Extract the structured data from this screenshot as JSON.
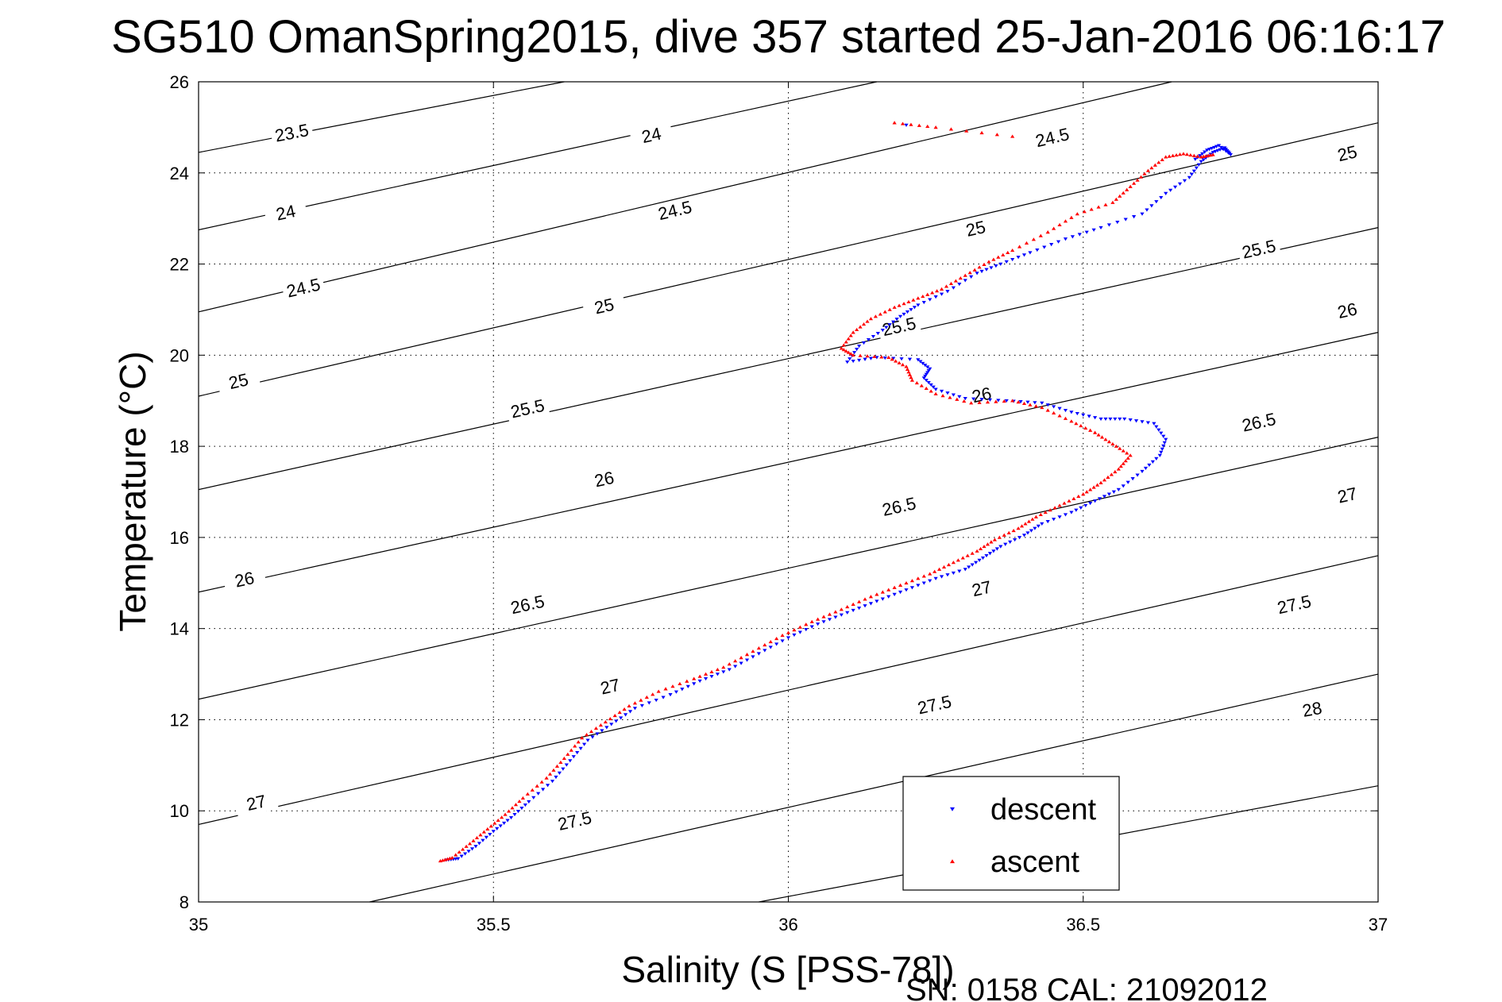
{
  "chart_data": {
    "type": "scatter",
    "title": "SG510 OmanSpring2015, dive 357 started 25-Jan-2016 06:16:17",
    "xlabel": "Salinity (S [PSS-78])",
    "ylabel": "Temperature (°C)",
    "xlim": [
      35,
      37
    ],
    "ylim": [
      8,
      26
    ],
    "x_ticks": [
      "35",
      "35.5",
      "36",
      "36.5",
      "37"
    ],
    "y_ticks": [
      "8",
      "10",
      "12",
      "14",
      "16",
      "18",
      "20",
      "22",
      "24",
      "26"
    ],
    "grid": true,
    "grid_style": "dotted",
    "legend": {
      "placement": "bottom-right",
      "entries": [
        "descent",
        "ascent"
      ]
    },
    "footer": "SN: 0158  CAL: 21092012",
    "isopycnals": {
      "color": "#000000",
      "levels": [
        {
          "label": "23.5",
          "x": [
            35.0,
            35.62
          ],
          "y": [
            24.45,
            26.0
          ]
        },
        {
          "label": "24",
          "x": [
            35.0,
            36.15
          ],
          "y": [
            22.75,
            26.0
          ]
        },
        {
          "label": "24.5",
          "x": [
            35.0,
            36.65
          ],
          "y": [
            20.95,
            26.0
          ]
        },
        {
          "label": "25",
          "x": [
            35.0,
            37.0
          ],
          "y": [
            19.1,
            25.1
          ]
        },
        {
          "label": "25.5",
          "x": [
            35.0,
            37.0
          ],
          "y": [
            17.05,
            22.8
          ]
        },
        {
          "label": "26",
          "x": [
            35.0,
            37.0
          ],
          "y": [
            14.8,
            20.5
          ]
        },
        {
          "label": "26.5",
          "x": [
            35.0,
            37.0
          ],
          "y": [
            12.45,
            18.2
          ]
        },
        {
          "label": "27",
          "x": [
            35.0,
            37.0
          ],
          "y": [
            9.7,
            15.6
          ]
        },
        {
          "label": "27.5",
          "x": [
            35.29,
            37.0
          ],
          "y": [
            8.0,
            13.0
          ]
        },
        {
          "label": "28",
          "x": [
            35.95,
            37.0
          ],
          "y": [
            8.0,
            10.55
          ]
        }
      ],
      "label_positions": [
        {
          "label": "23.5",
          "x": 35.16,
          "y": 24.75
        },
        {
          "label": "24",
          "x": 35.77,
          "y": 24.7
        },
        {
          "label": "24.5",
          "x": 36.45,
          "y": 24.65
        },
        {
          "label": "25",
          "x": 36.95,
          "y": 24.3
        },
        {
          "label": "24",
          "x": 35.15,
          "y": 23.0
        },
        {
          "label": "24.5",
          "x": 35.81,
          "y": 23.05
        },
        {
          "label": "25",
          "x": 36.32,
          "y": 22.65
        },
        {
          "label": "25.5",
          "x": 36.8,
          "y": 22.2
        },
        {
          "label": "24.5",
          "x": 35.18,
          "y": 21.35
        },
        {
          "label": "25",
          "x": 35.69,
          "y": 20.95
        },
        {
          "label": "25.5",
          "x": 36.19,
          "y": 20.5
        },
        {
          "label": "26",
          "x": 36.95,
          "y": 20.85
        },
        {
          "label": "25",
          "x": 35.07,
          "y": 19.3
        },
        {
          "label": "25.5",
          "x": 35.56,
          "y": 18.7
        },
        {
          "label": "26",
          "x": 36.33,
          "y": 19.0
        },
        {
          "label": "26.5",
          "x": 36.8,
          "y": 18.4
        },
        {
          "label": "26",
          "x": 35.69,
          "y": 17.15
        },
        {
          "label": "26.5",
          "x": 36.19,
          "y": 16.55
        },
        {
          "label": "27",
          "x": 36.95,
          "y": 16.8
        },
        {
          "label": "26",
          "x": 35.08,
          "y": 14.95
        },
        {
          "label": "26.5",
          "x": 35.56,
          "y": 14.4
        },
        {
          "label": "27",
          "x": 36.33,
          "y": 14.75
        },
        {
          "label": "27.5",
          "x": 36.86,
          "y": 14.4
        },
        {
          "label": "27",
          "x": 35.7,
          "y": 12.6
        },
        {
          "label": "27.5",
          "x": 36.25,
          "y": 12.2
        },
        {
          "label": "28",
          "x": 36.89,
          "y": 12.1
        },
        {
          "label": "27",
          "x": 35.1,
          "y": 10.05
        },
        {
          "label": "27.5",
          "x": 35.64,
          "y": 9.65
        }
      ]
    },
    "series": [
      {
        "name": "descent",
        "color": "#0000ff",
        "marker": "triangle-down",
        "points": [
          [
            35.42,
            8.92
          ],
          [
            35.44,
            8.95
          ],
          [
            35.47,
            9.22
          ],
          [
            35.5,
            9.55
          ],
          [
            35.53,
            9.85
          ],
          [
            35.56,
            10.2
          ],
          [
            35.6,
            10.65
          ],
          [
            35.63,
            11.1
          ],
          [
            35.66,
            11.55
          ],
          [
            35.7,
            11.9
          ],
          [
            35.74,
            12.25
          ],
          [
            35.8,
            12.55
          ],
          [
            35.85,
            12.85
          ],
          [
            35.9,
            13.1
          ],
          [
            35.95,
            13.45
          ],
          [
            36.0,
            13.8
          ],
          [
            36.05,
            14.1
          ],
          [
            36.1,
            14.35
          ],
          [
            36.15,
            14.6
          ],
          [
            36.2,
            14.85
          ],
          [
            36.25,
            15.1
          ],
          [
            36.3,
            15.3
          ],
          [
            36.33,
            15.55
          ],
          [
            36.36,
            15.8
          ],
          [
            36.4,
            16.05
          ],
          [
            36.43,
            16.3
          ],
          [
            36.48,
            16.55
          ],
          [
            36.52,
            16.8
          ],
          [
            36.56,
            17.05
          ],
          [
            36.6,
            17.45
          ],
          [
            36.63,
            17.8
          ],
          [
            36.64,
            18.15
          ],
          [
            36.62,
            18.5
          ],
          [
            36.57,
            18.6
          ],
          [
            36.53,
            18.6
          ],
          [
            36.48,
            18.75
          ],
          [
            36.43,
            18.95
          ],
          [
            36.37,
            19.0
          ],
          [
            36.3,
            19.05
          ],
          [
            36.25,
            19.25
          ],
          [
            36.23,
            19.5
          ],
          [
            36.24,
            19.7
          ],
          [
            36.22,
            19.9
          ],
          [
            36.15,
            19.95
          ],
          [
            36.1,
            19.85
          ],
          [
            36.12,
            20.2
          ],
          [
            36.16,
            20.55
          ],
          [
            36.19,
            20.85
          ],
          [
            36.22,
            21.1
          ],
          [
            36.27,
            21.4
          ],
          [
            36.32,
            21.8
          ],
          [
            36.36,
            22.0
          ],
          [
            36.41,
            22.25
          ],
          [
            36.47,
            22.55
          ],
          [
            36.53,
            22.8
          ],
          [
            36.6,
            23.1
          ],
          [
            36.64,
            23.55
          ],
          [
            36.68,
            23.9
          ],
          [
            36.7,
            24.25
          ],
          [
            36.72,
            24.45
          ],
          [
            36.74,
            24.55
          ],
          [
            36.75,
            24.4
          ],
          [
            36.73,
            24.6
          ],
          [
            36.71,
            24.5
          ],
          [
            36.69,
            24.3
          ],
          [
            36.2,
            25.05
          ]
        ]
      },
      {
        "name": "ascent",
        "color": "#ff0000",
        "marker": "triangle-up",
        "points": [
          [
            35.41,
            8.9
          ],
          [
            35.43,
            8.97
          ],
          [
            35.46,
            9.28
          ],
          [
            35.49,
            9.6
          ],
          [
            35.52,
            9.92
          ],
          [
            35.55,
            10.28
          ],
          [
            35.59,
            10.72
          ],
          [
            35.62,
            11.15
          ],
          [
            35.65,
            11.6
          ],
          [
            35.69,
            11.95
          ],
          [
            35.73,
            12.3
          ],
          [
            35.78,
            12.62
          ],
          [
            35.84,
            12.9
          ],
          [
            35.89,
            13.15
          ],
          [
            35.94,
            13.5
          ],
          [
            35.99,
            13.85
          ],
          [
            36.04,
            14.15
          ],
          [
            36.09,
            14.42
          ],
          [
            36.14,
            14.7
          ],
          [
            36.19,
            14.95
          ],
          [
            36.24,
            15.2
          ],
          [
            36.28,
            15.45
          ],
          [
            36.32,
            15.7
          ],
          [
            36.35,
            15.95
          ],
          [
            36.39,
            16.2
          ],
          [
            36.42,
            16.45
          ],
          [
            36.46,
            16.7
          ],
          [
            36.5,
            16.95
          ],
          [
            36.53,
            17.2
          ],
          [
            36.56,
            17.5
          ],
          [
            36.58,
            17.8
          ],
          [
            36.55,
            18.05
          ],
          [
            36.52,
            18.3
          ],
          [
            36.48,
            18.55
          ],
          [
            36.43,
            18.85
          ],
          [
            36.38,
            19.0
          ],
          [
            36.31,
            18.95
          ],
          [
            36.25,
            19.15
          ],
          [
            36.21,
            19.45
          ],
          [
            36.2,
            19.75
          ],
          [
            36.17,
            19.95
          ],
          [
            36.11,
            20.0
          ],
          [
            36.09,
            20.15
          ],
          [
            36.11,
            20.5
          ],
          [
            36.14,
            20.8
          ],
          [
            36.18,
            21.05
          ],
          [
            36.22,
            21.25
          ],
          [
            36.26,
            21.45
          ],
          [
            36.3,
            21.75
          ],
          [
            36.34,
            22.05
          ],
          [
            36.38,
            22.3
          ],
          [
            36.44,
            22.7
          ],
          [
            36.49,
            23.1
          ],
          [
            36.55,
            23.35
          ],
          [
            36.58,
            23.7
          ],
          [
            36.61,
            24.05
          ],
          [
            36.64,
            24.35
          ],
          [
            36.67,
            24.42
          ],
          [
            36.7,
            24.35
          ],
          [
            36.72,
            24.4
          ],
          [
            36.18,
            25.1
          ],
          [
            36.25,
            25.0
          ],
          [
            36.38,
            24.8
          ]
        ]
      }
    ]
  }
}
